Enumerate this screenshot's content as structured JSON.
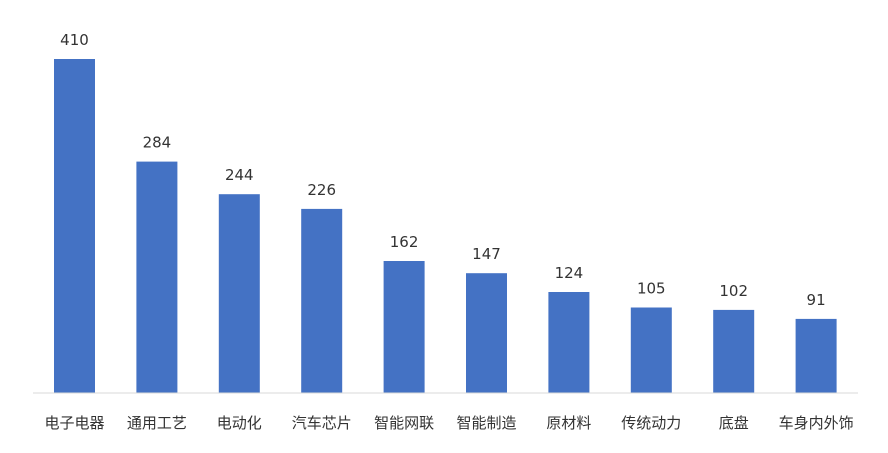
{
  "chart_data": {
    "type": "bar",
    "categories": [
      "电子电器",
      "通用工艺",
      "电动化",
      "汽车芯片",
      "智能网联",
      "智能制造",
      "原材料",
      "传统动力",
      "底盘",
      "车身内外饰"
    ],
    "values": [
      410,
      284,
      244,
      226,
      162,
      147,
      124,
      105,
      102,
      91
    ],
    "title": "",
    "xlabel": "",
    "ylabel": "",
    "ylim": [
      0,
      410
    ],
    "grid": false,
    "data_labels": true,
    "bar_color": "#4472C4",
    "axis_color": "#d9d9d9"
  }
}
